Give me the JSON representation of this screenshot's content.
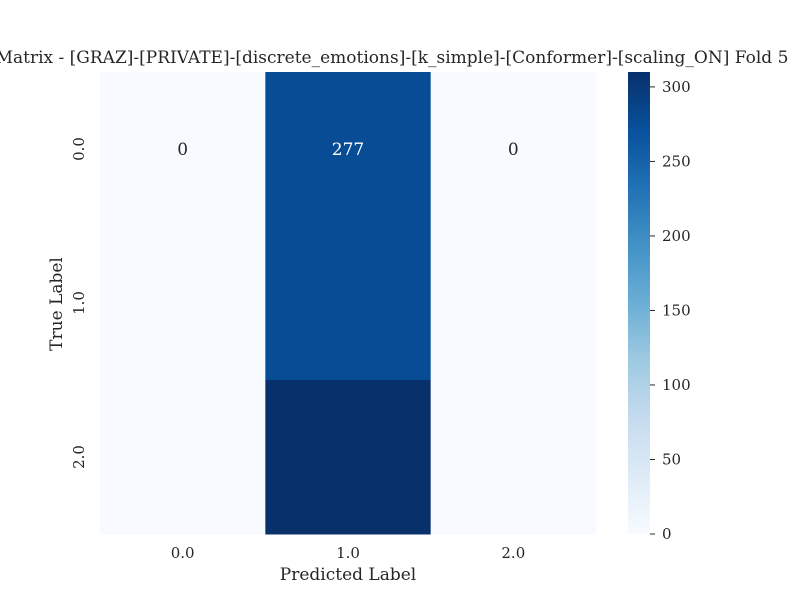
{
  "chart_data": {
    "type": "heatmap",
    "title": "Matrix - [GRAZ]-[PRIVATE]-[discrete_emotions]-[k_simple]-[Conformer]-[scaling_ON] Fold 5",
    "xlabel": "Predicted Label",
    "ylabel": "True Label",
    "x_categories": [
      "0.0",
      "1.0",
      "2.0"
    ],
    "y_categories": [
      "0.0",
      "1.0",
      "2.0"
    ],
    "values": [
      [
        0,
        277,
        0
      ],
      [
        0,
        277,
        0
      ],
      [
        0,
        310,
        0
      ]
    ],
    "annotated_row_index": 0,
    "colorbar": {
      "range": [
        0,
        310
      ],
      "ticks": [
        0,
        50,
        100,
        150,
        200,
        250,
        300
      ],
      "colormap": "Blues"
    },
    "grid": false
  }
}
